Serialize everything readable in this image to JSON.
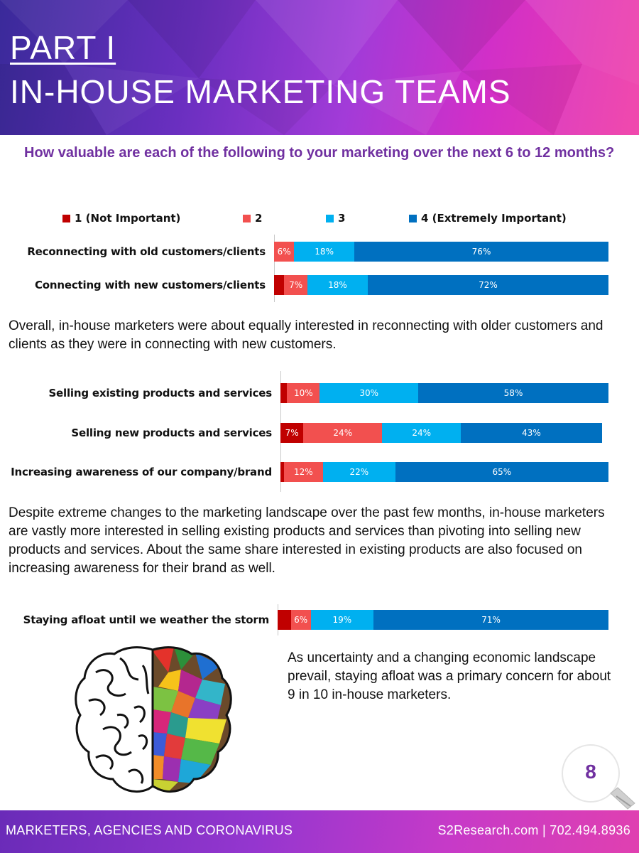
{
  "header": {
    "part": "PART I",
    "title": "IN-HOUSE MARKETING TEAMS"
  },
  "question": "How valuable are each of the following to your marketing over the next 6 to 12 months?",
  "colors": {
    "c1": "#c00000",
    "c2": "#f2504f",
    "c3": "#00b0f0",
    "c4": "#0070c0",
    "accent": "#7030a0"
  },
  "chart_data": [
    {
      "type": "bar",
      "stacked": "horizontal-100",
      "legend": [
        "1 (Not Important)",
        "2",
        "3",
        "4 (Extremely Important)"
      ],
      "categories": [
        "Reconnecting with old customers/clients",
        "Connecting with new customers/clients"
      ],
      "series": [
        {
          "name": "1 (Not Important)",
          "values": [
            0,
            3
          ]
        },
        {
          "name": "2",
          "values": [
            6,
            7
          ]
        },
        {
          "name": "3",
          "values": [
            18,
            18
          ]
        },
        {
          "name": "4 (Extremely Important)",
          "values": [
            76,
            72
          ]
        }
      ]
    },
    {
      "type": "bar",
      "stacked": "horizontal-100",
      "categories": [
        "Selling existing products and services",
        "Selling new products and services",
        "Increasing awareness of our company/brand"
      ],
      "series": [
        {
          "name": "1 (Not Important)",
          "values": [
            2,
            7,
            1
          ]
        },
        {
          "name": "2",
          "values": [
            10,
            24,
            12
          ]
        },
        {
          "name": "3",
          "values": [
            30,
            24,
            22
          ]
        },
        {
          "name": "4 (Extremely Important)",
          "values": [
            58,
            43,
            65
          ]
        }
      ]
    },
    {
      "type": "bar",
      "stacked": "horizontal-100",
      "categories": [
        "Staying afloat until we weather the storm"
      ],
      "series": [
        {
          "name": "1 (Not Important)",
          "values": [
            4
          ]
        },
        {
          "name": "2",
          "values": [
            6
          ]
        },
        {
          "name": "3",
          "values": [
            19
          ]
        },
        {
          "name": "4 (Extremely Important)",
          "values": [
            71
          ]
        }
      ]
    }
  ],
  "paragraphs": {
    "p1": "Overall, in-house marketers were about equally interested in reconnecting with older customers and clients as they were in connecting with new customers.",
    "p2": "Despite extreme changes to the marketing landscape over the past few months, in-house marketers are vastly more interested in selling existing products and services than pivoting into selling new products and services. About the same share interested in existing products are also focused on increasing awareness for their brand as well.",
    "p3": "As uncertainty and a changing economic landscape prevail, staying afloat was a primary concern for about 9 in 10 in-house marketers."
  },
  "page_number": "8",
  "footer": {
    "left": "MARKETERS, AGENCIES AND CORONAVIRUS",
    "right": "S2Research.com | 702.494.8936"
  }
}
